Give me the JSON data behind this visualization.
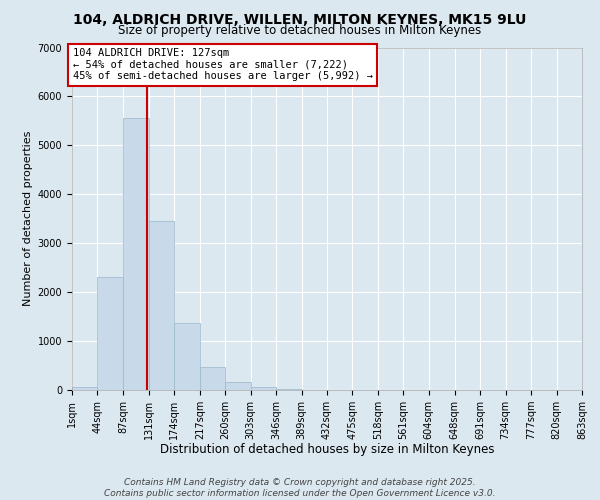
{
  "title": "104, ALDRICH DRIVE, WILLEN, MILTON KEYNES, MK15 9LU",
  "subtitle": "Size of property relative to detached houses in Milton Keynes",
  "xlabel": "Distribution of detached houses by size in Milton Keynes",
  "ylabel": "Number of detached properties",
  "bar_color": "#c8daea",
  "bar_edge_color": "#9ab8cc",
  "background_color": "#dce8f0",
  "grid_color": "#ffffff",
  "bin_edges": [
    1,
    44,
    87,
    131,
    174,
    217,
    260,
    303,
    346,
    389,
    432,
    475,
    518,
    561,
    604,
    648,
    691,
    734,
    777,
    820,
    863
  ],
  "bin_labels": [
    "1sqm",
    "44sqm",
    "87sqm",
    "131sqm",
    "174sqm",
    "217sqm",
    "260sqm",
    "303sqm",
    "346sqm",
    "389sqm",
    "432sqm",
    "475sqm",
    "518sqm",
    "561sqm",
    "604sqm",
    "648sqm",
    "691sqm",
    "734sqm",
    "777sqm",
    "820sqm",
    "863sqm"
  ],
  "bar_heights": [
    60,
    2300,
    5560,
    3450,
    1370,
    460,
    165,
    55,
    30,
    0,
    0,
    0,
    0,
    0,
    0,
    0,
    0,
    0,
    0,
    0
  ],
  "ylim": [
    0,
    7000
  ],
  "yticks": [
    0,
    1000,
    2000,
    3000,
    4000,
    5000,
    6000,
    7000
  ],
  "vline_x": 127,
  "vline_color": "#cc0000",
  "annotation_title": "104 ALDRICH DRIVE: 127sqm",
  "annotation_line1": "← 54% of detached houses are smaller (7,222)",
  "annotation_line2": "45% of semi-detached houses are larger (5,992) →",
  "annotation_box_color": "#ffffff",
  "annotation_box_edge_color": "#cc0000",
  "footer1": "Contains HM Land Registry data © Crown copyright and database right 2025.",
  "footer2": "Contains public sector information licensed under the Open Government Licence v3.0.",
  "title_fontsize": 10,
  "subtitle_fontsize": 8.5,
  "xlabel_fontsize": 8.5,
  "ylabel_fontsize": 8,
  "tick_fontsize": 7,
  "annotation_fontsize": 7.5,
  "footer_fontsize": 6.5
}
